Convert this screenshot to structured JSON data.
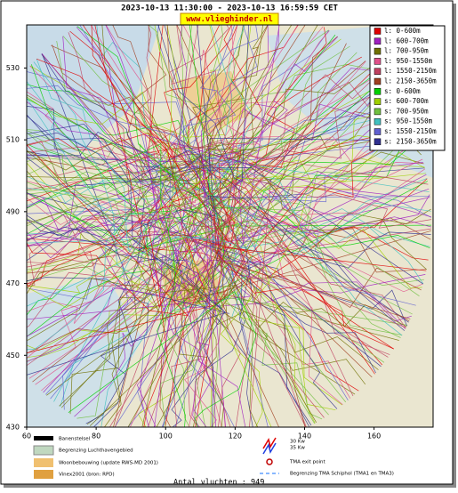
{
  "header": {
    "title": "2023-10-13 11:30:00 - 2023-10-13 16:59:59 CET",
    "site": "www.vlieghinder.nl"
  },
  "map": {
    "xlim": [
      60,
      177
    ],
    "ylim": [
      430,
      542
    ],
    "xticks": [
      60,
      80,
      100,
      120,
      140,
      160
    ],
    "yticks": [
      430,
      450,
      470,
      490,
      510,
      530
    ]
  },
  "legend": [
    {
      "label": "l: 0-600m",
      "color": "#e00000"
    },
    {
      "label": "l: 600-700m",
      "color": "#a020c0"
    },
    {
      "label": "l: 700-950m",
      "color": "#707000"
    },
    {
      "label": "l: 950-1550m",
      "color": "#e0508a"
    },
    {
      "label": "l: 1550-2150m",
      "color": "#c04060"
    },
    {
      "label": "l: 2150-3650m",
      "color": "#a04020"
    },
    {
      "label": "s: 0-600m",
      "color": "#00d000"
    },
    {
      "label": "s: 600-700m",
      "color": "#a0d000"
    },
    {
      "label": "s: 700-950m",
      "color": "#70c040"
    },
    {
      "label": "s: 950-1550m",
      "color": "#40c0c0"
    },
    {
      "label": "s: 1550-2150m",
      "color": "#6060d0"
    },
    {
      "label": "s: 2150-3650m",
      "color": "#303090"
    }
  ],
  "map_legend": {
    "left": [
      "Banenstelsel",
      "Begrenzing Luchthavengebied",
      "Woonbebouwing (update RWS-MD 2001)",
      "Vinex2001 (bron: RPD)"
    ],
    "kw30": "30 Kw",
    "kw35": "35 Kw",
    "exit": "TMA exit point",
    "tma": "Begrenzing TMA Schiphol  (TMA1 en TMA3)"
  },
  "footer": "Antal vluchten : 949"
}
